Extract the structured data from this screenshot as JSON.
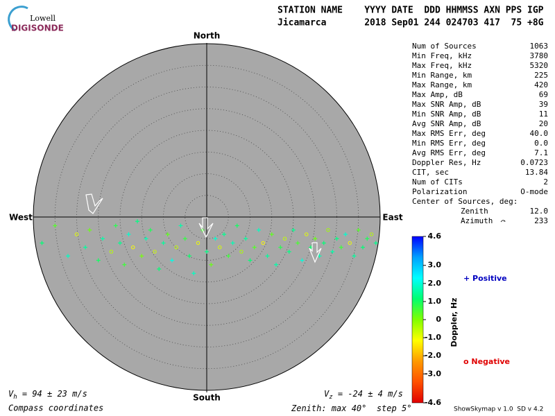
{
  "logo": {
    "top": "Lowell",
    "bottom": "DIGISONDE"
  },
  "header": {
    "line1": "STATION NAME    YYYY DATE  DDD HHMMSS AXN PPS IGP",
    "line2": "Jicamarca       2018 Sep01 244 024703 417  75 +8G"
  },
  "stats": [
    [
      "Num of Sources",
      "1063"
    ],
    [
      "Min Freq, kHz",
      "3780"
    ],
    [
      "Max Freq, kHz",
      "5320"
    ],
    [
      "Min Range, km",
      "225"
    ],
    [
      "Max Range, km",
      "420"
    ],
    [
      "Max Amp, dB",
      "69"
    ],
    [
      "Max SNR Amp, dB",
      "39"
    ],
    [
      "Min SNR Amp, dB",
      "11"
    ],
    [
      "Avg SNR Amp, dB",
      "20"
    ],
    [
      "Max RMS Err, deg",
      "40.0"
    ],
    [
      "Min RMS Err, deg",
      "0.0"
    ],
    [
      "Avg RMS Err, deg",
      "7.1"
    ],
    [
      "Doppler Res, Hz",
      "0.0723"
    ],
    [
      "CIT, sec",
      "13.84"
    ],
    [
      "Num of CITs",
      "2"
    ],
    [
      "Polarization",
      "O-mode"
    ]
  ],
  "center": {
    "title": "Center of Sources, deg:",
    "zenith_label": "Zenith",
    "zenith": "12.0",
    "azimuth_label": "Azimuth",
    "azimuth": "233"
  },
  "compass": {
    "north": "North",
    "south": "South",
    "east": "East",
    "west": "West"
  },
  "velocity": {
    "vh": [
      "V",
      "h",
      " = 94 ± 23 m/s"
    ],
    "vz": [
      "V",
      "z",
      " = -24 ± 4 m/s"
    ]
  },
  "footer": {
    "coords": "Compass coordinates",
    "zenith": {
      "prefix": "Zenith: max ",
      "max": 40,
      "mid": "°  step ",
      "step": 5,
      "suffix": "°"
    },
    "version": "ShowSkymap v 1.0  SD v 4.2"
  },
  "colorbar": {
    "label": "Doppler, Hz",
    "lim": [
      -4.6,
      4.6
    ],
    "ticks": [
      4.6,
      {
        "value": 3,
        "label": "3.0"
      },
      {
        "value": 2,
        "label": "2.0"
      },
      {
        "value": 1,
        "label": "1.0"
      },
      0,
      {
        "value": -1,
        "label": "-1.0"
      },
      {
        "value": -2,
        "label": "-2.0"
      },
      {
        "value": -3,
        "label": "-3.0"
      },
      -4.6
    ],
    "colors": [
      "#e00000",
      "#ff5000",
      "#ff9a00",
      "#ffff00",
      "#80ff00",
      "#00ff70",
      "#00ffff",
      "#00a0ff",
      "#0000ff"
    ]
  },
  "legend": {
    "positive": "+ Positive",
    "positive_color": "#0000c0",
    "negative": "o Negative",
    "negative_color": "#e00000"
  },
  "sources": {
    "east_deg": [
      -38,
      -35,
      -32,
      -30,
      -28,
      -27,
      -25,
      -24,
      -22,
      -21,
      -20,
      -19,
      -18,
      -17,
      -16,
      -15,
      -14,
      -13,
      -12,
      -11,
      -10,
      -9,
      -8,
      -7,
      -6,
      -5,
      -4,
      -3,
      -2,
      -1,
      0,
      1,
      2,
      3,
      4,
      5,
      6,
      7,
      8,
      9,
      10,
      11,
      12,
      13,
      14,
      15,
      16,
      17,
      18,
      19,
      20,
      21,
      22,
      23,
      24,
      25,
      26,
      27,
      28,
      29,
      30,
      31,
      32,
      33,
      34,
      35,
      36,
      37,
      38,
      39
    ],
    "north_deg": [
      -6,
      -2,
      -9,
      -4,
      -7,
      -3,
      -10,
      -5,
      -8,
      -2,
      -6,
      -11,
      -4,
      -7,
      -1,
      -9,
      -5,
      -3,
      -8,
      -12,
      -6,
      -4,
      -10,
      -7,
      -2,
      -5,
      -9,
      -13,
      -6,
      -3,
      -8,
      -11,
      -5,
      -7,
      -4,
      -9,
      -6,
      -2,
      -8,
      -5,
      -10,
      -7,
      -3,
      -6,
      -9,
      -4,
      -11,
      -7,
      -5,
      -8,
      -3,
      -6,
      -10,
      -4,
      -7,
      -5,
      -9,
      -6,
      -3,
      -8,
      -5,
      -7,
      -4,
      -6,
      -9,
      -3,
      -7,
      -5,
      -4,
      -6
    ],
    "doppler_hz": [
      1.2,
      0.4,
      1.8,
      -0.9,
      1.5,
      0.2,
      1.0,
      1.6,
      -0.5,
      0.8,
      1.4,
      0.6,
      1.9,
      -1.1,
      1.3,
      0.1,
      1.7,
      0.9,
      -0.7,
      1.2,
      1.5,
      0.3,
      2.1,
      -0.6,
      1.6,
      0.7,
      1.1,
      1.8,
      -1.0,
      0.5,
      1.3,
      0.2,
      1.9,
      -0.8,
      1.4,
      0.6,
      1.7,
      1.0,
      -0.4,
      1.5,
      1.2,
      0.4,
      1.8,
      -1.2,
      1.5,
      0.3,
      1.6,
      0.8,
      -0.6,
      1.3,
      1.4,
      0.5,
      2.0,
      -0.9,
      1.1,
      0.2,
      1.7,
      1.2,
      -0.3,
      1.6,
      1.3,
      0.6,
      1.9,
      -1.0,
      1.5,
      0.4,
      1.2,
      0.9,
      -0.5,
      1.4
    ]
  }
}
